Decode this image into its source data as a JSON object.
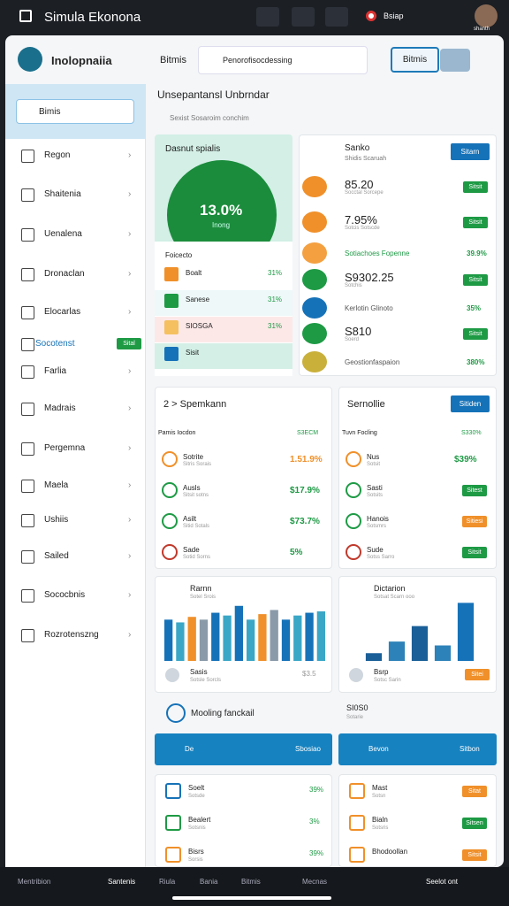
{
  "topbar": {
    "title": "Simula Ekonona",
    "status": "Bsiap",
    "user": "shanth"
  },
  "header": {
    "brand": "Inolopnaiia",
    "tab": "Bitmis",
    "search": "Penorofisocdessing",
    "button": "Bitmis"
  },
  "sidebar": {
    "search": "Bimis",
    "items": [
      {
        "label": "Regon"
      },
      {
        "label": "Shaitenia"
      },
      {
        "label": "Uenalena"
      },
      {
        "label": "Dronaclan"
      },
      {
        "label": "Elocarlas"
      },
      {
        "label": "Socotenst",
        "badge": "Sital"
      },
      {
        "label": "Farlia"
      },
      {
        "label": "Madrais"
      },
      {
        "label": "Pergemna"
      },
      {
        "label": "Maela"
      },
      {
        "label": "Ushiis"
      },
      {
        "label": "Sailed"
      },
      {
        "label": "Sococbnis"
      },
      {
        "label": "Rozrotenszng"
      }
    ]
  },
  "content": {
    "title": "Unsepantansl Unbrndar",
    "subtitle": "Sexist Sosaroim conchim",
    "gauge": {
      "title": "Dasnut spialis",
      "value": "13.0%",
      "caption": "Inong",
      "list_title": "Foicecto",
      "rows": [
        [
          "Boalt",
          "31%"
        ],
        [
          "Sanese",
          "31%"
        ],
        [
          "SIOSGA",
          "31%"
        ],
        [
          "Sisit"
        ]
      ]
    },
    "summary": {
      "title": "Sanko",
      "subtitle": "Shidis Scaruah",
      "button": "Sitarn",
      "rows": [
        [
          "85.20",
          "Socctal Sorcepe",
          "Sitsit"
        ],
        [
          "7.95%",
          "Sotcis Sotscde",
          "Sitsit"
        ],
        [
          "Sotiachoes Fopenne",
          "39.9%"
        ],
        [
          "S9302.25",
          "Sotchis",
          "Sitsit"
        ],
        [
          "Kerlotin Glinoto",
          "35%"
        ],
        [
          "S810",
          "Soerd",
          "Sitsit"
        ],
        [
          "Geostionfaspaion",
          "380%"
        ]
      ]
    },
    "left_list": {
      "title": "2 > Spemkann",
      "header": [
        "Pamis Iocdon",
        "S3ECM"
      ],
      "rows": [
        [
          "Sotrite",
          "Sitris Sorais",
          "1.51.9%"
        ],
        [
          "Ausls",
          "Sitsit sotns",
          "$17.9%"
        ],
        [
          "Asilt",
          "Sitid Sotals",
          "$73.7%"
        ],
        [
          "Sade",
          "Sotid Sorns",
          "5%"
        ]
      ]
    },
    "right_list": {
      "title": "Sernollie",
      "button": "Sitiden",
      "header": [
        "Tuvn Focling",
        "S330%"
      ],
      "rows": [
        [
          "Nus",
          "Sotsit",
          "$39%"
        ],
        [
          "Sasti",
          "Sotsits",
          "Sitest"
        ],
        [
          "Hanois",
          "Sotsmrs",
          "Sitiesi"
        ],
        [
          "Sude",
          "Sotss Sarro",
          "Sitsit"
        ]
      ]
    },
    "chart_left": {
      "title": "Rarnn",
      "subtitle": "Sotel Srois",
      "bars": [
        30,
        28,
        32,
        30,
        35,
        33,
        40,
        30,
        34,
        37,
        30,
        33,
        35,
        36
      ],
      "ylim": [
        0,
        45
      ],
      "footer": [
        "Sasis",
        "Sotsle Sorcls",
        "$3.5"
      ]
    },
    "chart_right": {
      "title": "Dictarion",
      "subtitle": "Sotsat Scarn ooo",
      "bars": [
        10,
        25,
        45,
        20,
        75
      ],
      "ylim": [
        0,
        80
      ],
      "footer": [
        "Bsrp",
        "Sotsc Sarin",
        "Sitei"
      ]
    },
    "section": {
      "title": "Mooling fanckail",
      "right_title": "SI0S0",
      "right_subtitle": "Sotarie",
      "left_bar": [
        "De",
        "Sbosiao"
      ],
      "right_bar": [
        "Bevon",
        "Sitbon"
      ]
    },
    "bottom_left": [
      [
        "Soelt",
        "Sotsde",
        "39%"
      ],
      [
        "Bealert",
        "Sotsnis",
        "3%"
      ],
      [
        "Bisrs",
        "Sorsis",
        "39%"
      ]
    ],
    "bottom_right": [
      [
        "Mast",
        "Sotsn",
        "Sitat"
      ],
      [
        "Bialn",
        "Sotsris",
        "Sitsen"
      ],
      [
        "Bhodoollan",
        "Sitsit"
      ]
    ]
  },
  "navbar": [
    "Mentribion",
    "Santenis",
    "Riula",
    "Bania",
    "Bitmis",
    "Mecnas",
    "Seelot ont"
  ]
}
